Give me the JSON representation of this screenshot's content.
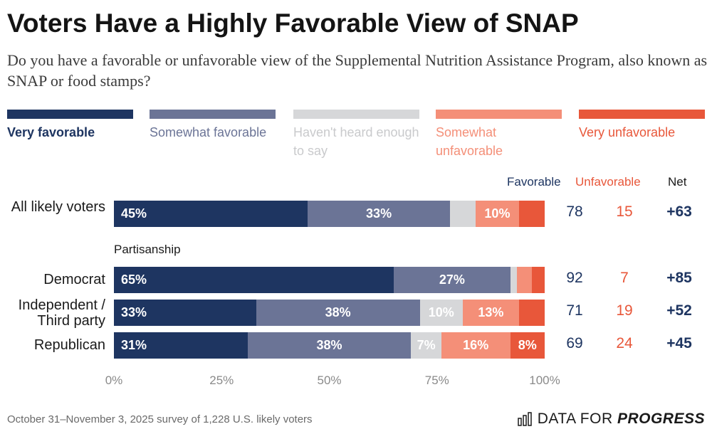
{
  "title": "Voters Have a Highly Favorable View of SNAP",
  "subtitle": "Do you have a favorable or unfavorable view of the Supplemental Nutrition Assistance Program, also known as SNAP or food stamps?",
  "legend": [
    {
      "label": "Very favorable",
      "color": "#1e3561",
      "text_color": "#1e3561"
    },
    {
      "label": "Somewhat favorable",
      "color": "#6b7496",
      "text_color": "#6b7496"
    },
    {
      "label": "Haven't heard enough to say",
      "color": "#d6d7d9",
      "text_color": "#c9cacc"
    },
    {
      "label": "Somewhat unfavorable",
      "color": "#f48f78",
      "text_color": "#f48f78"
    },
    {
      "label": "Very unfavorable",
      "color": "#e8573a",
      "text_color": "#e8573a"
    }
  ],
  "columns": {
    "favorable": "Favorable",
    "unfavorable": "Unfavorable",
    "net": "Net"
  },
  "section_label": "Partisanship",
  "chart_data": {
    "type": "bar",
    "orientation": "horizontal",
    "stacked": true,
    "xlim": [
      0,
      100
    ],
    "x_ticks": [
      "0%",
      "25%",
      "50%",
      "75%",
      "100%"
    ],
    "categories": [
      "All likely voters",
      "Democrat",
      "Independent / Third party",
      "Republican"
    ],
    "series": [
      {
        "name": "Very favorable",
        "values": [
          45,
          65,
          33,
          31
        ],
        "labels": [
          "45%",
          "65%",
          "33%",
          "31%"
        ]
      },
      {
        "name": "Somewhat favorable",
        "values": [
          33,
          27,
          38,
          38
        ],
        "labels": [
          "33%",
          "27%",
          "38%",
          "38%"
        ]
      },
      {
        "name": "Haven't heard enough to say",
        "values": [
          6,
          1.5,
          10,
          7
        ],
        "labels": [
          "",
          "",
          "10%",
          "7%"
        ]
      },
      {
        "name": "Somewhat unfavorable",
        "values": [
          10,
          3.5,
          13,
          16
        ],
        "labels": [
          "10%",
          "",
          "13%",
          "16%"
        ]
      },
      {
        "name": "Very unfavorable",
        "values": [
          6,
          3,
          6,
          8
        ],
        "labels": [
          "",
          "",
          "",
          "8%"
        ]
      }
    ],
    "favorable": [
      "78",
      "92",
      "71",
      "69"
    ],
    "unfavorable": [
      "15",
      "7",
      "19",
      "24"
    ],
    "net": [
      "+63",
      "+85",
      "+52",
      "+45"
    ]
  },
  "footnote": "October 31–November 3, 2025 survey of 1,228 U.S. likely voters",
  "logo": {
    "text": "DATA FOR ",
    "bold": "PROGRESS"
  }
}
